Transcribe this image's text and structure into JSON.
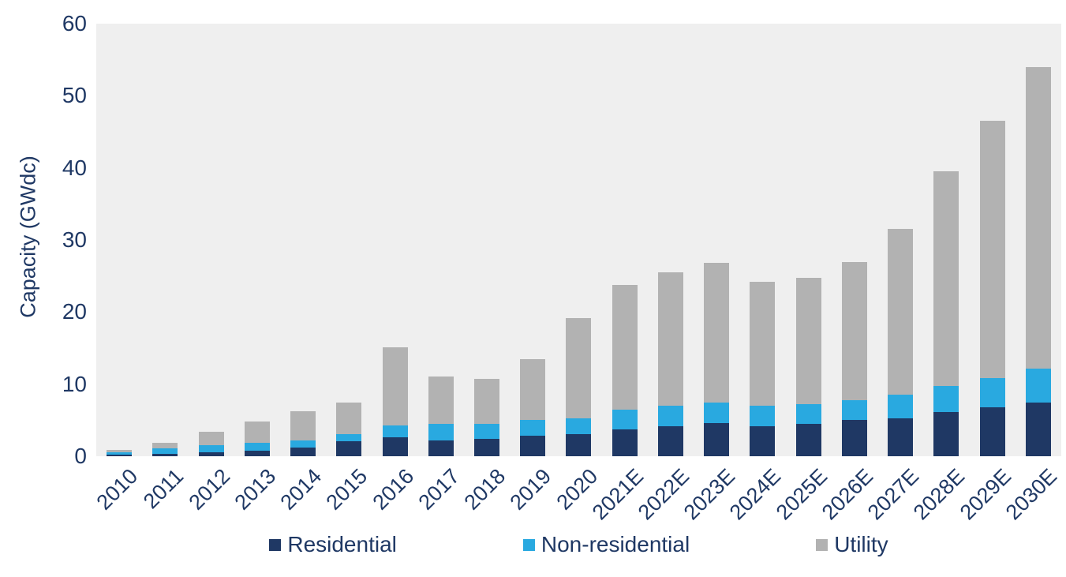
{
  "chart_data": {
    "type": "bar",
    "stacked": true,
    "title": "",
    "xlabel": "",
    "ylabel": "Capacity (GWdc)",
    "ylim": [
      0,
      60
    ],
    "yticks": [
      0,
      10,
      20,
      30,
      40,
      50,
      60
    ],
    "grid": false,
    "legend_position": "bottom",
    "plot_background": "#efefef",
    "axis_text_color": "#1f3864",
    "categories": [
      "2010",
      "2011",
      "2012",
      "2013",
      "2014",
      "2015",
      "2016",
      "2017",
      "2018",
      "2019",
      "2020",
      "2021E",
      "2022E",
      "2023E",
      "2024E",
      "2025E",
      "2026E",
      "2027E",
      "2028E",
      "2029E",
      "2030E"
    ],
    "series": [
      {
        "name": "Residential",
        "color": "#1f3864",
        "values": [
          0.25,
          0.3,
          0.5,
          0.8,
          1.2,
          2.1,
          2.6,
          2.2,
          2.4,
          2.8,
          3.1,
          3.7,
          4.2,
          4.6,
          4.2,
          4.5,
          5.0,
          5.3,
          6.1,
          6.8,
          7.5
        ]
      },
      {
        "name": "Non-residential",
        "color": "#29a9e0",
        "values": [
          0.35,
          0.8,
          1.0,
          1.1,
          1.0,
          1.0,
          1.7,
          2.3,
          2.1,
          2.2,
          2.2,
          2.8,
          2.8,
          2.9,
          2.8,
          2.7,
          2.8,
          3.2,
          3.6,
          4.0,
          4.7
        ]
      },
      {
        "name": "Utility",
        "color": "#b2b2b2",
        "values": [
          0.25,
          0.8,
          1.9,
          2.9,
          4.0,
          4.4,
          10.8,
          6.6,
          6.2,
          8.5,
          13.9,
          17.3,
          18.5,
          19.3,
          17.2,
          17.5,
          19.1,
          23.0,
          29.8,
          35.7,
          41.8
        ]
      }
    ]
  }
}
